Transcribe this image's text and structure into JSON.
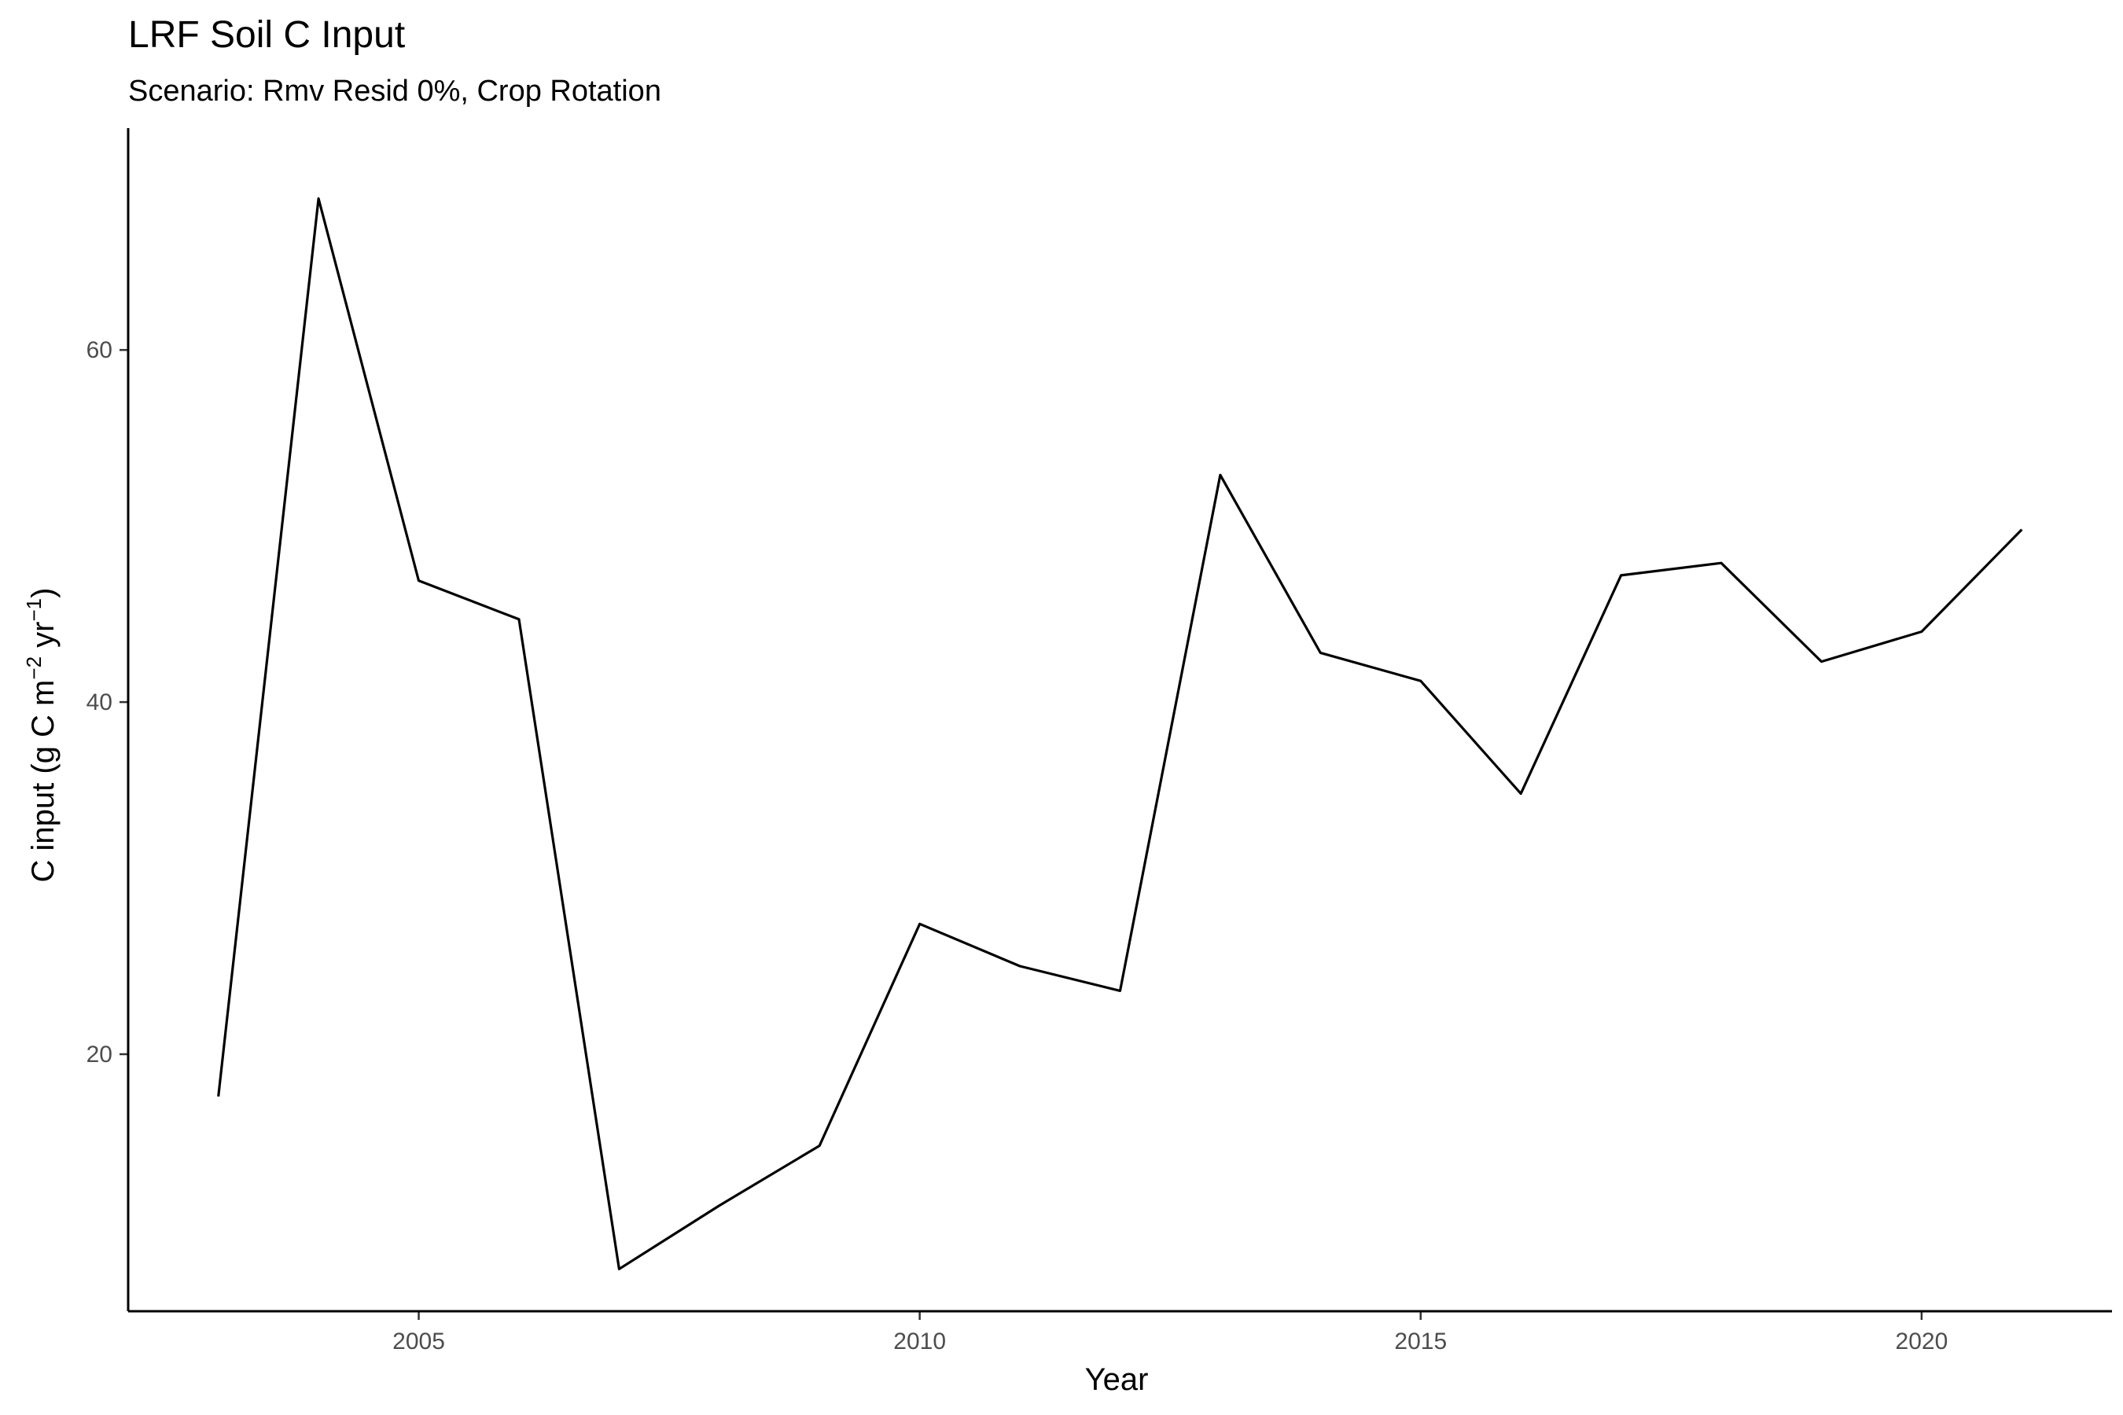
{
  "chart_data": {
    "type": "line",
    "title": "LRF Soil C Input",
    "subtitle": "Scenario: Rmv Resid 0%, Crop Rotation",
    "xlabel": "Year",
    "ylabel": {
      "prefix": "C input (g C m",
      "sup1": "−2",
      "mid": " yr",
      "sup2": "−1",
      "suffix": ")"
    },
    "xlim": [
      2002.1,
      2021.9
    ],
    "ylim": [
      5.4,
      72.6
    ],
    "x_ticks": [
      2005,
      2010,
      2015,
      2020
    ],
    "y_ticks": [
      20,
      40,
      60
    ],
    "grid": false,
    "series": [
      {
        "color": "#000000",
        "x": [
          2003,
          2004,
          2005,
          2006,
          2007,
          2008,
          2009,
          2010,
          2011,
          2012,
          2013,
          2014,
          2015,
          2016,
          2017,
          2018,
          2019,
          2020,
          2021
        ],
        "y": [
          17.6,
          68.6,
          46.9,
          44.7,
          7.8,
          11.4,
          14.8,
          27.4,
          25.0,
          23.6,
          52.9,
          42.8,
          41.2,
          34.8,
          47.2,
          47.9,
          42.3,
          44.0,
          49.8
        ]
      }
    ]
  }
}
